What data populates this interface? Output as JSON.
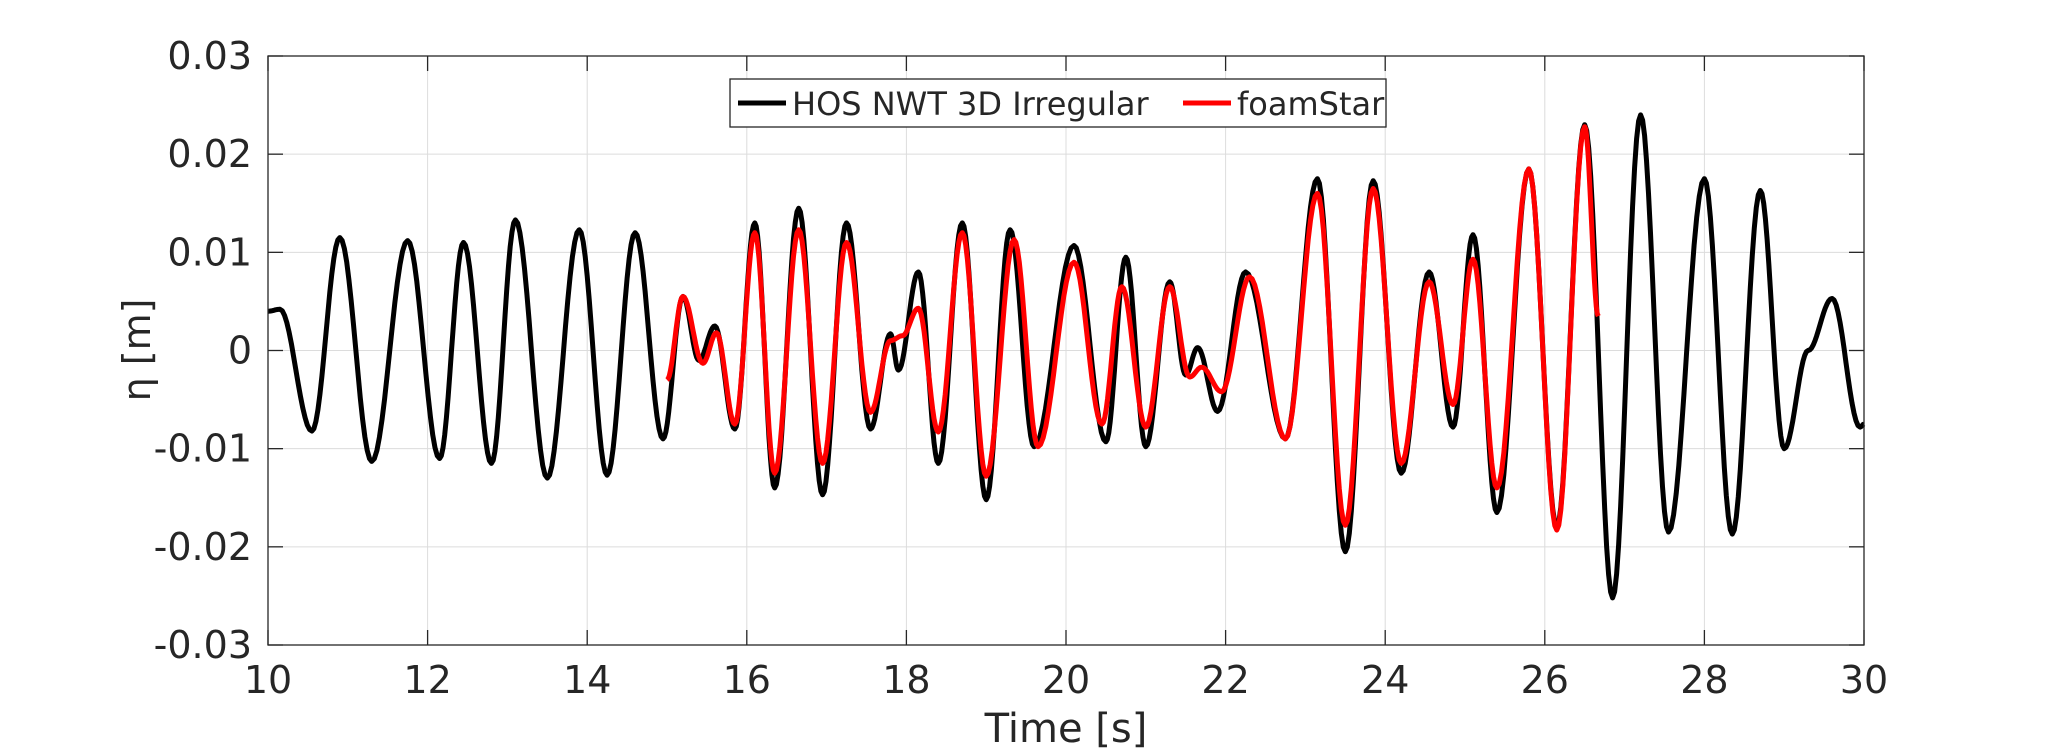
{
  "chart_data": {
    "type": "line",
    "title": "",
    "xlabel": "Time [s]",
    "ylabel": "η [m]",
    "xlim": [
      10,
      30
    ],
    "ylim": [
      -0.03,
      0.03
    ],
    "xticks": [
      "10",
      "12",
      "14",
      "16",
      "18",
      "20",
      "22",
      "24",
      "26",
      "28",
      "30"
    ],
    "yticks": [
      "-0.03",
      "-0.02",
      "-0.01",
      "0",
      "0.01",
      "0.02",
      "0.03"
    ],
    "grid": true,
    "legend_position": "top-center",
    "series": [
      {
        "name": "HOS NWT 3D Irregular",
        "color": "#000000",
        "x": [
          10,
          10.15,
          10.55,
          10.9,
          11.3,
          11.75,
          12.15,
          12.45,
          12.8,
          13.1,
          13.5,
          13.9,
          14.25,
          14.6,
          14.95,
          15.2,
          15.4,
          15.6,
          15.85,
          16.1,
          16.35,
          16.65,
          16.95,
          17.25,
          17.55,
          17.8,
          17.9,
          18.15,
          18.4,
          18.7,
          19.0,
          19.3,
          19.6,
          20.1,
          20.5,
          20.75,
          21.0,
          21.3,
          21.5,
          21.65,
          21.9,
          22.25,
          22.75,
          23.15,
          23.5,
          23.85,
          24.2,
          24.55,
          24.85,
          25.1,
          25.4,
          25.8,
          26.15,
          26.5,
          26.85,
          27.2,
          27.55,
          28.0,
          28.35,
          28.7,
          29.0,
          29.3,
          29.6,
          29.95,
          30
        ],
        "y": [
          0.004,
          0.0042,
          -0.0082,
          0.0115,
          -0.0113,
          0.0112,
          -0.011,
          0.011,
          -0.0115,
          0.0133,
          -0.013,
          0.0123,
          -0.0127,
          0.012,
          -0.009,
          0.0055,
          -0.001,
          0.0025,
          -0.008,
          0.013,
          -0.014,
          0.0145,
          -0.0147,
          0.013,
          -0.008,
          0.0017,
          -0.002,
          0.008,
          -0.0115,
          0.013,
          -0.0152,
          0.0123,
          -0.0098,
          0.0107,
          -0.0093,
          0.0095,
          -0.0098,
          0.007,
          -0.0025,
          0.0003,
          -0.0062,
          0.008,
          -0.009,
          0.0175,
          -0.0205,
          0.0173,
          -0.0125,
          0.008,
          -0.0078,
          0.0118,
          -0.0165,
          0.0185,
          -0.018,
          0.023,
          -0.0252,
          0.024,
          -0.0185,
          0.0175,
          -0.0187,
          0.0163,
          -0.01,
          0.0,
          0.0053,
          -0.0078,
          -0.0075
        ]
      },
      {
        "name": "foamStar",
        "color": "#ff0000",
        "x": [
          15.0,
          15.2,
          15.45,
          15.62,
          15.85,
          16.1,
          16.35,
          16.65,
          16.95,
          17.25,
          17.55,
          17.8,
          17.95,
          18.15,
          18.4,
          18.7,
          19.0,
          19.35,
          19.65,
          20.1,
          20.45,
          20.7,
          21.0,
          21.3,
          21.55,
          21.7,
          21.95,
          22.3,
          22.75,
          23.15,
          23.5,
          23.85,
          24.2,
          24.55,
          24.85,
          25.1,
          25.4,
          25.8,
          26.15,
          26.5,
          26.67
        ],
        "y": [
          -0.003,
          0.0055,
          -0.0013,
          0.0018,
          -0.0075,
          0.012,
          -0.0125,
          0.0123,
          -0.0115,
          0.011,
          -0.0063,
          0.001,
          0.0015,
          0.0043,
          -0.0083,
          0.012,
          -0.0128,
          0.0113,
          -0.0098,
          0.009,
          -0.0075,
          0.0065,
          -0.0078,
          0.0065,
          -0.0027,
          -0.0017,
          -0.0042,
          0.0075,
          -0.009,
          0.016,
          -0.0178,
          0.0165,
          -0.0115,
          0.007,
          -0.0055,
          0.0093,
          -0.014,
          0.0185,
          -0.0183,
          0.0228,
          0.0035
        ]
      }
    ]
  }
}
